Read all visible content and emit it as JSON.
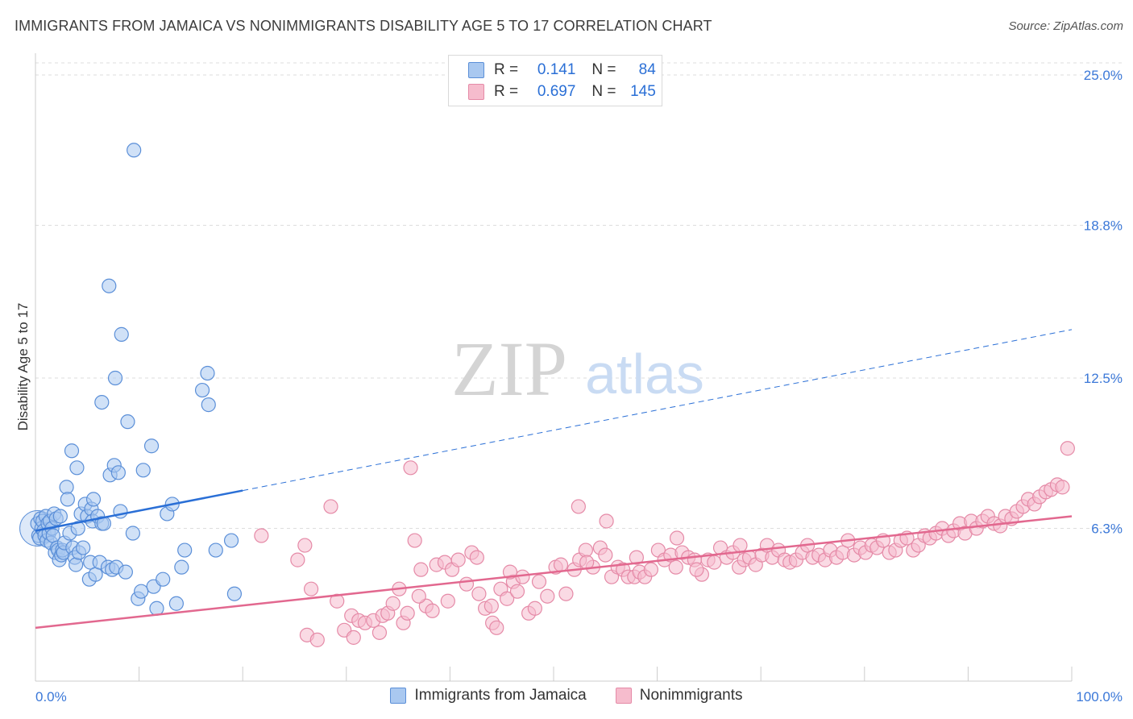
{
  "title": "IMMIGRANTS FROM JAMAICA VS NONIMMIGRANTS DISABILITY AGE 5 TO 17 CORRELATION CHART",
  "source": "Source: ZipAtlas.com",
  "watermark": {
    "zip": "ZIP",
    "atlas": "atlas"
  },
  "legend": {
    "r_label": "R =",
    "n_label": "N =",
    "rows": [
      {
        "r": "0.141",
        "n": "84"
      },
      {
        "r": "0.697",
        "n": "145"
      }
    ]
  },
  "bottom_legend": [
    "Immigrants from Jamaica",
    "Nonimmigrants"
  ],
  "colors": {
    "blue_fill": "#a9c8f0",
    "blue_stroke": "#5b8fd8",
    "blue_line": "#2a6fd6",
    "pink_fill": "#f6bccd",
    "pink_stroke": "#e58aa7",
    "pink_line": "#e2688f",
    "tick_text": "#3b78d8"
  },
  "chart_data": {
    "type": "scatter",
    "title": "IMMIGRANTS FROM JAMAICA VS NONIMMIGRANTS DISABILITY AGE 5 TO 17 CORRELATION CHART",
    "xlabel": "",
    "ylabel": "Disability Age 5 to 17",
    "xlim": [
      0,
      100
    ],
    "ylim": [
      0,
      25.5
    ],
    "x_tick_labels": [
      "0.0%",
      "100.0%"
    ],
    "y_ticks": [
      6.3,
      12.5,
      18.8,
      25.0
    ],
    "y_tick_labels": [
      "6.3%",
      "12.5%",
      "18.8%",
      "25.0%"
    ],
    "grid": true,
    "legend_position": "top-center",
    "series": [
      {
        "name": "Immigrants from Jamaica",
        "R": 0.141,
        "N": 84,
        "trend": {
          "x0": 0,
          "y0": 6.2,
          "x1": 100,
          "y1": 14.5,
          "solid_until": 20
        },
        "points": [
          [
            0.2,
            6.5
          ],
          [
            0.3,
            6.0
          ],
          [
            0.4,
            5.9
          ],
          [
            0.5,
            6.7
          ],
          [
            0.6,
            6.3
          ],
          [
            0.7,
            6.6
          ],
          [
            0.8,
            6.2
          ],
          [
            0.9,
            6.0
          ],
          [
            1.0,
            6.8
          ],
          [
            1.1,
            5.8
          ],
          [
            1.2,
            6.5
          ],
          [
            1.3,
            6.1
          ],
          [
            1.4,
            6.6
          ],
          [
            1.5,
            5.7
          ],
          [
            1.6,
            6.3
          ],
          [
            1.7,
            6.0
          ],
          [
            1.8,
            6.9
          ],
          [
            1.9,
            5.3
          ],
          [
            2.0,
            6.7
          ],
          [
            2.1,
            5.5
          ],
          [
            2.2,
            5.4
          ],
          [
            2.3,
            5.0
          ],
          [
            2.4,
            6.8
          ],
          [
            2.5,
            5.2
          ],
          [
            2.6,
            5.4
          ],
          [
            2.7,
            5.3
          ],
          [
            2.8,
            5.7
          ],
          [
            3.0,
            8.0
          ],
          [
            3.1,
            7.5
          ],
          [
            3.3,
            6.1
          ],
          [
            3.5,
            9.5
          ],
          [
            3.6,
            5.5
          ],
          [
            3.8,
            5.1
          ],
          [
            3.9,
            4.8
          ],
          [
            4.0,
            8.8
          ],
          [
            4.1,
            6.3
          ],
          [
            4.2,
            5.3
          ],
          [
            4.4,
            6.9
          ],
          [
            4.6,
            5.5
          ],
          [
            4.8,
            7.3
          ],
          [
            5.0,
            6.8
          ],
          [
            5.2,
            4.2
          ],
          [
            5.3,
            4.9
          ],
          [
            5.4,
            7.1
          ],
          [
            5.5,
            6.6
          ],
          [
            5.6,
            7.5
          ],
          [
            5.8,
            4.4
          ],
          [
            6.0,
            6.8
          ],
          [
            6.2,
            4.9
          ],
          [
            6.4,
            6.5
          ],
          [
            6.6,
            6.5
          ],
          [
            7.0,
            4.7
          ],
          [
            7.2,
            8.5
          ],
          [
            7.4,
            4.6
          ],
          [
            7.6,
            8.9
          ],
          [
            7.8,
            4.7
          ],
          [
            8.0,
            8.6
          ],
          [
            8.2,
            7.0
          ],
          [
            8.7,
            4.5
          ],
          [
            8.9,
            10.7
          ],
          [
            9.4,
            6.1
          ],
          [
            9.9,
            3.4
          ],
          [
            10.4,
            8.7
          ],
          [
            11.2,
            9.7
          ],
          [
            11.4,
            3.9
          ],
          [
            11.7,
            3.0
          ],
          [
            12.3,
            4.2
          ],
          [
            12.7,
            6.9
          ],
          [
            13.2,
            7.3
          ],
          [
            14.1,
            4.7
          ],
          [
            14.4,
            5.4
          ],
          [
            16.1,
            12.0
          ],
          [
            16.7,
            11.4
          ],
          [
            17.4,
            5.4
          ],
          [
            18.9,
            5.8
          ],
          [
            19.2,
            3.6
          ],
          [
            7.1,
            16.3
          ],
          [
            8.3,
            14.3
          ],
          [
            7.7,
            12.5
          ],
          [
            6.4,
            11.5
          ],
          [
            9.5,
            21.9
          ],
          [
            16.6,
            12.7
          ],
          [
            13.6,
            3.2
          ],
          [
            10.2,
            3.7
          ]
        ]
      },
      {
        "name": "Nonimmigrants",
        "R": 0.697,
        "N": 145,
        "trend": {
          "x0": 0,
          "y0": 2.2,
          "x1": 100,
          "y1": 6.8
        },
        "points": [
          [
            21.8,
            6.0
          ],
          [
            25.3,
            5.0
          ],
          [
            26.0,
            5.6
          ],
          [
            26.6,
            3.8
          ],
          [
            26.2,
            1.9
          ],
          [
            27.2,
            1.7
          ],
          [
            28.5,
            7.2
          ],
          [
            29.1,
            3.3
          ],
          [
            29.8,
            2.1
          ],
          [
            30.5,
            2.7
          ],
          [
            31.2,
            2.5
          ],
          [
            31.8,
            2.4
          ],
          [
            32.6,
            2.5
          ],
          [
            33.5,
            2.7
          ],
          [
            34.0,
            2.8
          ],
          [
            34.5,
            3.2
          ],
          [
            35.1,
            3.8
          ],
          [
            35.5,
            2.4
          ],
          [
            36.6,
            5.8
          ],
          [
            37.2,
            4.6
          ],
          [
            37.7,
            3.1
          ],
          [
            38.7,
            4.8
          ],
          [
            39.5,
            4.9
          ],
          [
            40.2,
            4.6
          ],
          [
            40.8,
            5.0
          ],
          [
            41.6,
            4.0
          ],
          [
            42.1,
            5.3
          ],
          [
            42.6,
            5.1
          ],
          [
            43.4,
            3.0
          ],
          [
            44.1,
            2.4
          ],
          [
            44.5,
            2.2
          ],
          [
            44.9,
            3.8
          ],
          [
            45.5,
            3.4
          ],
          [
            46.1,
            4.1
          ],
          [
            46.5,
            3.7
          ],
          [
            47.0,
            4.3
          ],
          [
            47.6,
            2.8
          ],
          [
            48.2,
            3.0
          ],
          [
            48.6,
            4.1
          ],
          [
            49.4,
            3.5
          ],
          [
            50.2,
            4.7
          ],
          [
            50.7,
            4.8
          ],
          [
            51.2,
            3.6
          ],
          [
            52.0,
            4.6
          ],
          [
            52.5,
            5.0
          ],
          [
            53.1,
            5.4
          ],
          [
            53.8,
            4.7
          ],
          [
            54.5,
            5.5
          ],
          [
            55.0,
            5.2
          ],
          [
            55.6,
            4.3
          ],
          [
            56.2,
            4.7
          ],
          [
            56.7,
            4.6
          ],
          [
            57.2,
            4.3
          ],
          [
            57.8,
            4.3
          ],
          [
            58.3,
            4.5
          ],
          [
            58.8,
            4.3
          ],
          [
            59.4,
            4.6
          ],
          [
            60.1,
            5.4
          ],
          [
            60.7,
            5.0
          ],
          [
            61.3,
            5.2
          ],
          [
            61.8,
            4.7
          ],
          [
            62.4,
            5.3
          ],
          [
            63.0,
            5.1
          ],
          [
            63.6,
            5.0
          ],
          [
            64.3,
            4.4
          ],
          [
            64.9,
            5.0
          ],
          [
            65.5,
            4.9
          ],
          [
            66.1,
            5.5
          ],
          [
            66.7,
            5.1
          ],
          [
            67.3,
            5.3
          ],
          [
            67.9,
            4.7
          ],
          [
            68.4,
            5.0
          ],
          [
            68.9,
            5.1
          ],
          [
            69.5,
            4.8
          ],
          [
            70.1,
            5.2
          ],
          [
            70.6,
            5.6
          ],
          [
            71.1,
            5.1
          ],
          [
            71.7,
            5.4
          ],
          [
            72.3,
            5.0
          ],
          [
            72.8,
            4.9
          ],
          [
            73.4,
            5.0
          ],
          [
            74.0,
            5.3
          ],
          [
            74.5,
            5.6
          ],
          [
            75.0,
            5.1
          ],
          [
            75.6,
            5.2
          ],
          [
            76.2,
            5.0
          ],
          [
            76.7,
            5.4
          ],
          [
            77.3,
            5.1
          ],
          [
            77.9,
            5.3
          ],
          [
            78.4,
            5.8
          ],
          [
            79.0,
            5.2
          ],
          [
            79.6,
            5.5
          ],
          [
            80.1,
            5.3
          ],
          [
            80.7,
            5.6
          ],
          [
            81.2,
            5.5
          ],
          [
            81.8,
            5.8
          ],
          [
            82.4,
            5.3
          ],
          [
            83.0,
            5.4
          ],
          [
            83.5,
            5.8
          ],
          [
            84.1,
            5.9
          ],
          [
            84.7,
            5.4
          ],
          [
            85.2,
            5.6
          ],
          [
            85.8,
            6.0
          ],
          [
            86.3,
            5.9
          ],
          [
            86.9,
            6.1
          ],
          [
            87.5,
            6.3
          ],
          [
            88.1,
            6.0
          ],
          [
            88.6,
            6.2
          ],
          [
            89.2,
            6.5
          ],
          [
            89.7,
            6.1
          ],
          [
            90.3,
            6.6
          ],
          [
            90.8,
            6.3
          ],
          [
            91.4,
            6.6
          ],
          [
            91.9,
            6.8
          ],
          [
            92.5,
            6.5
          ],
          [
            93.1,
            6.4
          ],
          [
            93.6,
            6.8
          ],
          [
            94.2,
            6.7
          ],
          [
            94.7,
            7.0
          ],
          [
            95.3,
            7.2
          ],
          [
            95.8,
            7.5
          ],
          [
            96.4,
            7.3
          ],
          [
            96.9,
            7.6
          ],
          [
            97.5,
            7.8
          ],
          [
            98.0,
            7.9
          ],
          [
            98.6,
            8.1
          ],
          [
            99.1,
            8.0
          ],
          [
            99.6,
            9.6
          ],
          [
            36.2,
            8.8
          ],
          [
            52.4,
            7.2
          ],
          [
            55.1,
            6.6
          ],
          [
            61.9,
            5.9
          ],
          [
            37.0,
            3.5
          ],
          [
            35.9,
            2.8
          ],
          [
            39.8,
            3.3
          ],
          [
            42.8,
            3.6
          ],
          [
            44.0,
            3.1
          ],
          [
            30.7,
            1.8
          ],
          [
            33.2,
            2.0
          ],
          [
            38.3,
            2.9
          ],
          [
            45.8,
            4.5
          ],
          [
            53.2,
            4.9
          ],
          [
            58.0,
            5.1
          ],
          [
            63.8,
            4.6
          ],
          [
            68.0,
            5.6
          ]
        ]
      }
    ]
  }
}
